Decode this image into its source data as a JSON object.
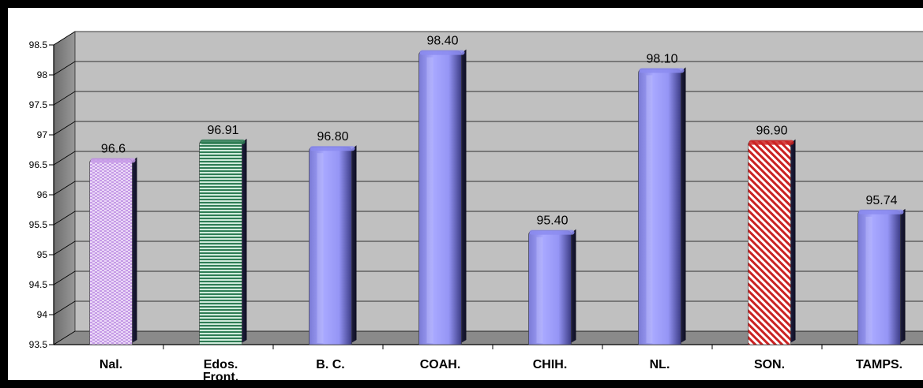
{
  "chart_data": {
    "type": "bar",
    "categories": [
      [
        "Nal."
      ],
      [
        "Edos.",
        "Front."
      ],
      [
        "B. C."
      ],
      [
        "COAH."
      ],
      [
        "CHIH."
      ],
      [
        "NL."
      ],
      [
        "SON."
      ],
      [
        "TAMPS."
      ]
    ],
    "values": [
      96.6,
      96.91,
      96.8,
      98.4,
      95.4,
      98.1,
      96.9,
      95.74
    ],
    "data_labels": [
      "96.6",
      "96.91",
      "96.80",
      "98.40",
      "95.40",
      "98.10",
      "96.90",
      "95.74"
    ],
    "bar_colors": [
      "#d9b8f0",
      "#3f8f66",
      "#9999ff",
      "#9999ff",
      "#9999ff",
      "#9999ff",
      "#cc2222",
      "#9999ff"
    ],
    "bar_patterns": [
      "lavender-dots",
      "green-stripes",
      "solid",
      "solid",
      "solid",
      "solid",
      "red-diagonal",
      "solid"
    ],
    "yticks": [
      "93.5",
      "94",
      "94.5",
      "95",
      "95.5",
      "96",
      "96.5",
      "97",
      "97.5",
      "98",
      "98.5"
    ],
    "ylim": [
      93.5,
      98.5
    ],
    "grid": true,
    "title": "",
    "xlabel": "",
    "ylabel": "",
    "plot_background": "#c0c0c0"
  }
}
